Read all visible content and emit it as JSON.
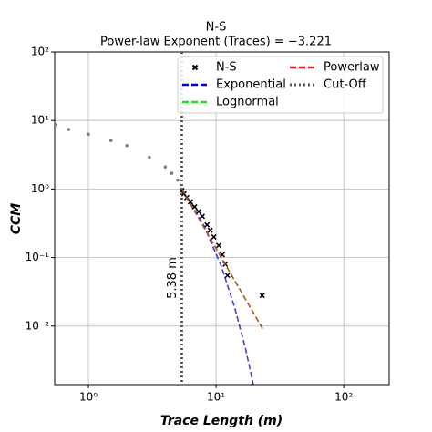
{
  "chart_data": {
    "type": "line",
    "title": "N-S",
    "subtitle": "Power-law Exponent (Traces) = −3.221",
    "x_label": "Trace Length (m)",
    "y_label": "CCM",
    "x_scale": "log",
    "y_scale": "log",
    "grid": true,
    "legend_position": "upper right",
    "xlim": [
      0.544,
      227
    ],
    "ylim": [
      0.0014,
      100
    ],
    "xticks": [
      {
        "value": 1,
        "label": "10⁰"
      },
      {
        "value": 10,
        "label": "10¹"
      },
      {
        "value": 100,
        "label": "10²"
      }
    ],
    "yticks": [
      {
        "value": 0.01,
        "label": "10⁻²"
      },
      {
        "value": 0.1,
        "label": "10⁻¹"
      },
      {
        "value": 1,
        "label": "10⁰"
      },
      {
        "value": 10,
        "label": "10¹"
      },
      {
        "value": 100,
        "label": "10²"
      }
    ],
    "series": [
      {
        "style": "scatter-dot",
        "color": "#808080",
        "x": [
          0.55,
          0.7,
          1,
          1.5,
          2,
          3,
          4,
          4.5,
          5,
          5.38
        ],
        "values": [
          8.7,
          7.4,
          6.3,
          5.1,
          4.3,
          2.9,
          2.1,
          1.7,
          1.35,
          1.0
        ]
      },
      {
        "name": "N-S",
        "style": "scatter-x",
        "color": "#000000",
        "x": [
          5.4,
          5.6,
          5.9,
          6.3,
          6.8,
          7.3,
          7.8,
          8.5,
          9,
          9.6,
          10.5,
          11.2,
          11.8,
          12.3,
          23
        ],
        "values": [
          0.95,
          0.85,
          0.75,
          0.65,
          0.55,
          0.47,
          0.4,
          0.3,
          0.25,
          0.2,
          0.15,
          0.11,
          0.08,
          0.055,
          0.028
        ]
      },
      {
        "name": "Exponential",
        "style": "dashed",
        "color": "#0000cc",
        "x": [
          5.38,
          8,
          11,
          14,
          17,
          19.6
        ],
        "values": [
          1,
          0.298,
          0.0745,
          0.0186,
          0.0047,
          0.0014
        ]
      },
      {
        "name": "Lognormal",
        "style": "dashed",
        "color": "#22dd22",
        "x": [
          5.38,
          11,
          23.5
        ],
        "values": [
          1,
          0.1,
          0.0088
        ]
      },
      {
        "name": "Powerlaw",
        "style": "dashed",
        "color": "#dd2222",
        "x": [
          5.38,
          23.5
        ],
        "values": [
          1,
          0.0087
        ]
      }
    ],
    "cutoff": {
      "name": "Cut-Off",
      "x": 5.38,
      "color": "#555555",
      "annotation": "5.38 m"
    }
  }
}
